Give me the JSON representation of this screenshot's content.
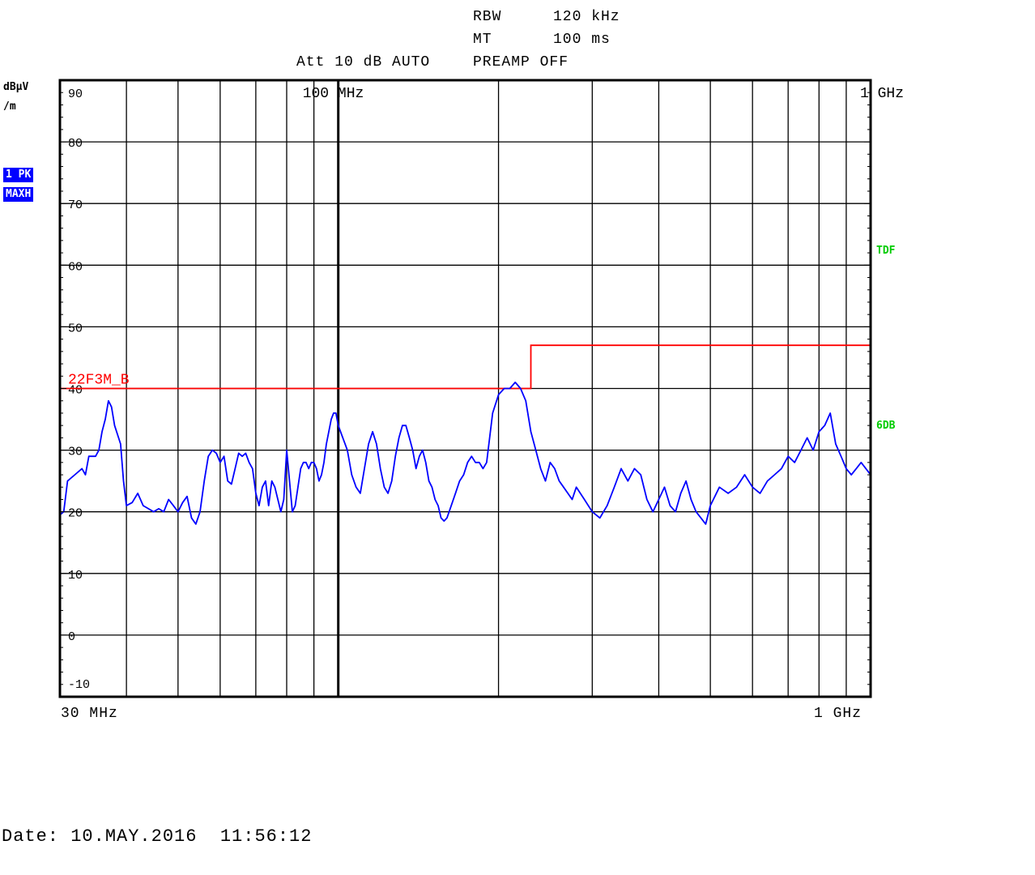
{
  "header": {
    "rbw_label": "RBW",
    "rbw_value": "120 kHz",
    "mt_label": "MT",
    "mt_value": "100 ms",
    "att": "Att 10 dB AUTO",
    "preamp": "PREAMP OFF"
  },
  "left_panel": {
    "unit_line1": "dBµV",
    "unit_line2": "/m",
    "trace_badge": "1 PK",
    "mode_badge": "MAXH"
  },
  "right_panel": {
    "tdf": "TDF",
    "six_db": "6DB"
  },
  "footer": {
    "start_freq": "30 MHz",
    "stop_freq": "1 GHz",
    "date": "Date: 10.MAY.2016  11:56:12"
  },
  "colors": {
    "trace": "#0000ff",
    "limit": "#ff0000",
    "side_labels": "#00cc00",
    "badge_bg": "#0000ff"
  },
  "chart_data": {
    "type": "line",
    "x_scale": "log",
    "x_unit": "MHz",
    "xlim": [
      30,
      1000
    ],
    "ylim": [
      -10,
      90
    ],
    "ylabel": "dBµV/m",
    "y_ticks": [
      90,
      80,
      70,
      60,
      50,
      40,
      30,
      20,
      10,
      0,
      -10
    ],
    "x_top_labels": [
      {
        "freq": 100,
        "text": "100 MHz"
      },
      {
        "freq": 1000,
        "text": "1 GHz"
      }
    ],
    "x_bottom_labels": [
      "30 MHz",
      "1 GHz"
    ],
    "grid": true,
    "limit_line": {
      "name": "22F3M_B",
      "points": [
        [
          30,
          40
        ],
        [
          230,
          40
        ],
        [
          230,
          47
        ],
        [
          1000,
          47
        ]
      ]
    },
    "series": [
      {
        "name": "1 PK MAXH",
        "points": [
          [
            30.0,
            19.5
          ],
          [
            30.5,
            20
          ],
          [
            31,
            25
          ],
          [
            32,
            26
          ],
          [
            33,
            27
          ],
          [
            33.5,
            26
          ],
          [
            34,
            29
          ],
          [
            35,
            29
          ],
          [
            35.5,
            30
          ],
          [
            36,
            33
          ],
          [
            36.5,
            35
          ],
          [
            37,
            38
          ],
          [
            37.5,
            37
          ],
          [
            38,
            34
          ],
          [
            39,
            31
          ],
          [
            39.5,
            25
          ],
          [
            40,
            21
          ],
          [
            41,
            21.5
          ],
          [
            42,
            23
          ],
          [
            43,
            21
          ],
          [
            44,
            20.5
          ],
          [
            45,
            20
          ],
          [
            46,
            20.5
          ],
          [
            47,
            20
          ],
          [
            48,
            22
          ],
          [
            49,
            21
          ],
          [
            50,
            20
          ],
          [
            51,
            21.5
          ],
          [
            52,
            22.5
          ],
          [
            53,
            19
          ],
          [
            54,
            18
          ],
          [
            55,
            20
          ],
          [
            56,
            25
          ],
          [
            57,
            29
          ],
          [
            58,
            30
          ],
          [
            59,
            29.5
          ],
          [
            60,
            28
          ],
          [
            61,
            29
          ],
          [
            62,
            25
          ],
          [
            63,
            24.5
          ],
          [
            64,
            27
          ],
          [
            65,
            29.5
          ],
          [
            66,
            29
          ],
          [
            67,
            29.5
          ],
          [
            68,
            28
          ],
          [
            69,
            27
          ],
          [
            70,
            23
          ],
          [
            71,
            21
          ],
          [
            72,
            24
          ],
          [
            73,
            25
          ],
          [
            74,
            21
          ],
          [
            75,
            25
          ],
          [
            76,
            24
          ],
          [
            77,
            22
          ],
          [
            78,
            20
          ],
          [
            79,
            22
          ],
          [
            80,
            30
          ],
          [
            81,
            25
          ],
          [
            82,
            20
          ],
          [
            83,
            21
          ],
          [
            84,
            24
          ],
          [
            85,
            27
          ],
          [
            86,
            28
          ],
          [
            87,
            28
          ],
          [
            88,
            27
          ],
          [
            89,
            28
          ],
          [
            90,
            28
          ],
          [
            91,
            27
          ],
          [
            92,
            25
          ],
          [
            93,
            26
          ],
          [
            94,
            28
          ],
          [
            95,
            31
          ],
          [
            96,
            33
          ],
          [
            97,
            35
          ],
          [
            98,
            36
          ],
          [
            99,
            36
          ],
          [
            100,
            34
          ],
          [
            102,
            32
          ],
          [
            104,
            30
          ],
          [
            106,
            26
          ],
          [
            108,
            24
          ],
          [
            110,
            23
          ],
          [
            112,
            27
          ],
          [
            114,
            31
          ],
          [
            116,
            33
          ],
          [
            118,
            31
          ],
          [
            120,
            27
          ],
          [
            122,
            24
          ],
          [
            124,
            23
          ],
          [
            126,
            25
          ],
          [
            128,
            29
          ],
          [
            130,
            32
          ],
          [
            132,
            34
          ],
          [
            134,
            34
          ],
          [
            136,
            32
          ],
          [
            138,
            30
          ],
          [
            140,
            27
          ],
          [
            142,
            29
          ],
          [
            144,
            30
          ],
          [
            146,
            28
          ],
          [
            148,
            25
          ],
          [
            150,
            24
          ],
          [
            152,
            22
          ],
          [
            154,
            21
          ],
          [
            156,
            19
          ],
          [
            158,
            18.5
          ],
          [
            160,
            19
          ],
          [
            163,
            21
          ],
          [
            166,
            23
          ],
          [
            169,
            25
          ],
          [
            172,
            26
          ],
          [
            175,
            28
          ],
          [
            178,
            29
          ],
          [
            181,
            28
          ],
          [
            184,
            28
          ],
          [
            187,
            27
          ],
          [
            190,
            28
          ],
          [
            195,
            36
          ],
          [
            200,
            39
          ],
          [
            205,
            40
          ],
          [
            210,
            40
          ],
          [
            215,
            41
          ],
          [
            220,
            40
          ],
          [
            225,
            38
          ],
          [
            230,
            33
          ],
          [
            235,
            30
          ],
          [
            240,
            27
          ],
          [
            245,
            25
          ],
          [
            250,
            28
          ],
          [
            255,
            27
          ],
          [
            260,
            25
          ],
          [
            265,
            24
          ],
          [
            270,
            23
          ],
          [
            275,
            22
          ],
          [
            280,
            24
          ],
          [
            290,
            22
          ],
          [
            300,
            20
          ],
          [
            310,
            19
          ],
          [
            320,
            21
          ],
          [
            330,
            24
          ],
          [
            340,
            27
          ],
          [
            350,
            25
          ],
          [
            360,
            27
          ],
          [
            370,
            26
          ],
          [
            380,
            22
          ],
          [
            390,
            20
          ],
          [
            400,
            22
          ],
          [
            410,
            24
          ],
          [
            420,
            21
          ],
          [
            430,
            20
          ],
          [
            440,
            23
          ],
          [
            450,
            25
          ],
          [
            460,
            22
          ],
          [
            470,
            20
          ],
          [
            480,
            19
          ],
          [
            490,
            18
          ],
          [
            500,
            21
          ],
          [
            520,
            24
          ],
          [
            540,
            23
          ],
          [
            560,
            24
          ],
          [
            580,
            26
          ],
          [
            600,
            24
          ],
          [
            620,
            23
          ],
          [
            640,
            25
          ],
          [
            660,
            26
          ],
          [
            680,
            27
          ],
          [
            700,
            29
          ],
          [
            720,
            28
          ],
          [
            740,
            30
          ],
          [
            760,
            32
          ],
          [
            780,
            30
          ],
          [
            800,
            33
          ],
          [
            820,
            34
          ],
          [
            840,
            36
          ],
          [
            860,
            31
          ],
          [
            880,
            29
          ],
          [
            900,
            27
          ],
          [
            920,
            26
          ],
          [
            940,
            27
          ],
          [
            960,
            28
          ],
          [
            980,
            27
          ],
          [
            1000,
            26
          ]
        ]
      }
    ]
  }
}
